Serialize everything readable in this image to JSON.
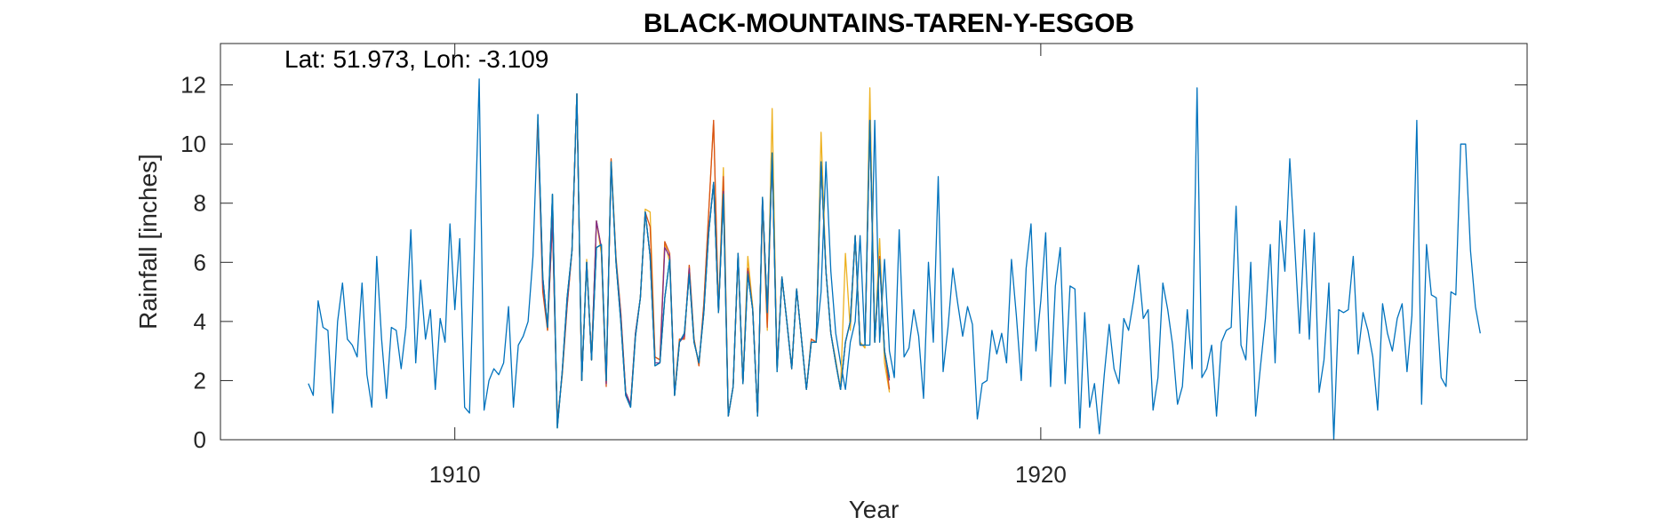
{
  "chart_data": {
    "type": "line",
    "title": "BLACK-MOUNTAINS-TAREN-Y-ESGOB",
    "xlabel": "Year",
    "ylabel": "Rainfall [inches]",
    "annotation": "Lat: 51.973, Lon: -3.109",
    "xlim": [
      1906.0,
      1928.3
    ],
    "ylim": [
      0,
      13.4
    ],
    "x_ticks": [
      1910,
      1920
    ],
    "x_tick_labels": [
      "1910",
      "1920"
    ],
    "y_ticks": [
      0,
      2,
      4,
      6,
      8,
      10,
      12
    ],
    "y_tick_labels": [
      "0",
      "2",
      "4",
      "6",
      "8",
      "10",
      "12"
    ],
    "grid": false,
    "x_start": 1907.5,
    "x_step": 0.0833333,
    "series": [
      {
        "color": "#0072BD",
        "start_index": 0,
        "values": [
          1.9,
          1.5,
          4.7,
          3.8,
          3.7,
          0.9,
          4.0,
          5.3,
          3.4,
          3.2,
          2.8,
          5.3,
          2.2,
          1.1,
          6.2,
          3.4,
          1.4,
          3.8,
          3.7,
          2.4,
          3.8,
          7.1,
          2.6,
          5.4,
          3.4,
          4.4,
          1.7,
          4.1,
          3.3,
          7.3,
          4.4,
          6.8,
          1.1,
          0.9,
          6.5,
          12.2,
          1.0,
          2.0,
          2.4,
          2.2,
          2.6,
          4.5,
          1.1,
          3.2,
          3.5,
          4.0,
          6.2,
          11.0,
          5.5,
          3.8,
          8.3,
          0.4,
          2.3,
          4.8,
          6.4,
          11.7,
          2.0,
          6.0,
          2.7,
          6.5,
          6.6,
          2.0,
          9.4,
          6.0,
          4.0,
          1.5,
          1.1,
          3.5,
          4.8,
          7.7,
          6.2,
          2.5,
          2.6,
          4.8,
          6.1,
          1.5,
          3.3,
          3.6,
          5.6,
          3.3,
          2.6,
          4.3,
          7.0,
          8.7,
          4.3,
          8.3,
          0.8,
          1.8,
          6.3,
          1.9,
          5.6,
          4.4,
          0.8,
          8.2,
          4.3,
          9.7,
          2.3,
          5.5,
          4.0,
          2.4,
          5.1,
          3.4,
          1.7,
          3.3,
          3.3,
          5.0,
          9.4,
          5.7,
          3.6,
          2.6,
          1.7,
          3.3,
          4.0,
          6.9,
          3.2,
          3.2,
          10.8,
          3.3,
          6.1,
          3.0,
          2.1,
          7.1,
          2.8,
          3.1,
          4.4,
          3.5,
          1.4,
          6.0,
          3.3,
          8.9,
          2.3,
          3.8,
          5.8,
          4.6,
          3.5,
          4.5,
          3.9,
          0.7,
          1.9,
          2.0,
          3.7,
          2.9,
          3.6,
          2.6,
          6.1,
          4.2,
          2.0,
          5.8,
          7.3,
          3.0,
          4.7,
          7.0,
          1.8,
          5.2,
          6.5,
          1.9,
          5.2,
          5.1,
          0.4,
          4.3,
          1.1,
          1.9,
          0.2,
          2.2,
          3.9,
          2.4,
          1.9,
          4.1,
          3.7,
          4.7,
          5.9,
          4.1,
          4.4,
          1.0,
          2.1,
          5.3,
          4.4,
          3.2,
          1.2,
          1.8,
          4.4,
          2.4,
          11.9,
          2.1,
          2.4,
          3.2,
          0.8,
          3.3,
          3.7,
          3.8,
          7.9,
          3.2,
          2.7,
          6.0,
          0.8,
          2.5,
          4.1,
          6.6,
          2.6,
          7.4,
          5.7,
          9.5,
          6.6,
          3.6,
          7.1,
          3.4,
          7.0,
          1.6,
          2.7,
          5.3,
          0.0,
          4.4,
          4.3,
          4.4,
          6.2,
          2.9,
          4.3,
          3.7,
          2.8,
          1.0,
          4.6,
          3.6,
          3.0,
          4.1,
          4.6,
          2.3,
          4.2,
          10.8,
          1.2,
          6.6,
          4.9,
          4.8,
          2.1,
          1.8,
          5.0,
          4.9,
          10.0,
          10.0,
          6.4,
          4.5,
          3.6
        ]
      },
      {
        "color": "#EDB120",
        "start_index": 47,
        "values": [
          10.6,
          5.3,
          3.7,
          7.4,
          0.6,
          2.2,
          4.5,
          6.4,
          11.7,
          2.0,
          6.1,
          2.7,
          7.4,
          6.3,
          1.9,
          9.5,
          6.2,
          4.3,
          1.6,
          1.2,
          3.6,
          4.8,
          7.8,
          7.7,
          2.8,
          2.7,
          6.7,
          6.0,
          1.6,
          3.4,
          3.4,
          5.9,
          3.4,
          2.5,
          4.6,
          7.7,
          10.8,
          4.3,
          9.2,
          0.8,
          1.8,
          6.2,
          1.9,
          6.2,
          4.5,
          0.8,
          8.1,
          3.7,
          11.2,
          2.4,
          5.5,
          4.0,
          2.4,
          5.1,
          3.4,
          1.7,
          3.4,
          3.3,
          10.4,
          5.7,
          3.6,
          2.7,
          1.7,
          6.3,
          3.7,
          6.9,
          3.3,
          3.1,
          11.9,
          3.3,
          6.8,
          2.6,
          1.6
        ]
      },
      {
        "color": "#D95319",
        "start_index": 47,
        "values": [
          10.5,
          5.0,
          3.7,
          7.4,
          0.6,
          2.2,
          4.5,
          6.4,
          11.7,
          2.0,
          6.0,
          2.7,
          7.4,
          6.5,
          1.8,
          9.5,
          6.1,
          4.3,
          1.6,
          1.2,
          3.6,
          4.8,
          7.7,
          7.2,
          2.8,
          2.7,
          6.7,
          6.3,
          1.6,
          3.4,
          3.4,
          5.9,
          3.4,
          2.5,
          4.6,
          7.7,
          10.8,
          4.3,
          8.9,
          0.8,
          1.8,
          6.2,
          1.9,
          5.8,
          4.4,
          0.8,
          8.0,
          3.8,
          9.7,
          2.4,
          5.5,
          4.0,
          2.4,
          5.1,
          3.4,
          1.7,
          3.4,
          3.3,
          9.4,
          5.7,
          3.6,
          2.6,
          1.7,
          3.3,
          4.0,
          6.9,
          3.2,
          3.2,
          10.8,
          3.3,
          6.2,
          3.0,
          1.7
        ]
      },
      {
        "color": "#7E2F8E",
        "start_index": 47,
        "values": [
          10.8,
          5.3,
          3.8,
          7.5,
          0.5,
          2.3,
          4.6,
          6.4,
          11.7,
          2.0,
          6.0,
          2.7,
          7.4,
          6.5,
          1.9,
          9.3,
          6.1,
          4.2,
          1.6,
          1.2,
          3.6,
          4.8,
          7.7,
          6.2,
          2.6,
          2.6,
          6.5,
          6.2,
          1.5,
          3.3,
          3.5,
          5.8,
          3.3,
          2.6,
          4.4,
          7.1,
          8.7,
          4.3,
          8.4,
          0.8,
          1.8,
          6.3,
          1.9,
          5.7,
          4.4,
          0.8,
          8.2,
          4.3,
          9.6,
          2.4,
          5.5,
          4.0,
          2.4,
          5.1,
          3.4,
          1.7,
          3.3,
          3.3,
          9.4,
          5.7,
          3.6,
          2.6,
          1.7,
          3.3,
          4.0,
          6.9,
          3.2,
          3.2,
          10.8,
          3.3,
          6.0,
          3.0,
          2.0
        ]
      },
      {
        "color": "#77AC30",
        "start_index": 47,
        "values": [
          10.9,
          5.5,
          3.8,
          8.3,
          0.4,
          2.3,
          4.8,
          6.4,
          11.7,
          2.0,
          6.0,
          2.7,
          6.5,
          6.6,
          2.0,
          9.4,
          6.0,
          4.0,
          1.5,
          1.1,
          3.5,
          4.8,
          7.7,
          6.2,
          2.5,
          2.6,
          4.8,
          6.1,
          1.5,
          3.3,
          3.6,
          5.6,
          3.3,
          2.6,
          4.3,
          7.0,
          8.7,
          4.3,
          8.3,
          0.8,
          1.8,
          6.3,
          1.9,
          5.6,
          4.4,
          0.8,
          8.2,
          4.3,
          9.7,
          2.3,
          5.5,
          4.0,
          2.4,
          5.1,
          3.4,
          1.7,
          3.3,
          3.3,
          9.4,
          5.7,
          3.6,
          2.6,
          1.7,
          3.3,
          4.0,
          6.9,
          3.2,
          3.2,
          10.8,
          3.3,
          6.1,
          3.0,
          2.1
        ]
      },
      {
        "color": "#0072BD",
        "start_index": 47,
        "values": [
          11.0,
          5.5,
          3.8,
          8.3,
          0.4,
          2.3,
          4.8,
          6.4,
          11.7,
          2.0,
          6.0,
          2.7,
          6.5,
          6.6,
          2.0,
          9.4,
          6.0,
          4.0,
          1.5,
          1.1,
          3.5,
          4.8,
          7.7,
          6.2,
          2.5,
          2.6,
          4.8,
          6.1,
          1.5,
          3.3,
          3.6,
          5.6,
          3.3,
          2.6,
          4.3,
          7.0,
          8.7,
          4.3,
          8.3,
          0.8,
          1.8,
          6.3,
          1.9,
          5.6,
          4.4,
          0.8,
          8.2,
          4.3,
          9.7,
          2.3,
          5.5,
          4.0,
          2.4,
          5.1,
          3.4,
          1.7,
          3.3,
          3.3,
          9.4,
          5.7,
          3.6,
          2.6,
          1.7,
          3.3,
          4.0,
          6.9,
          3.2,
          3.2,
          10.8,
          3.3,
          6.1,
          3.0,
          2.1
        ]
      }
    ]
  }
}
